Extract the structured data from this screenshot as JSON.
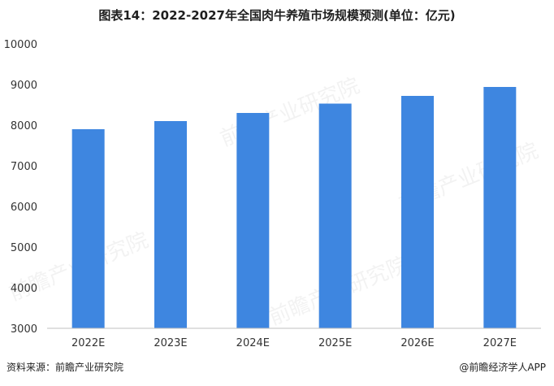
{
  "title": "图表14：2022-2027年全国肉牛养殖市场规模预测(单位：亿元)",
  "footer": {
    "source": "资料来源：前瞻产业研究院",
    "brand": "@前瞻经济学人APP"
  },
  "watermark_text": "前瞻产业研究院",
  "colors": {
    "bar": "#3e86e0",
    "axis": "#bfbfbf",
    "text": "#333333"
  },
  "chart_data": {
    "type": "bar",
    "categories": [
      "2022E",
      "2023E",
      "2024E",
      "2025E",
      "2026E",
      "2027E"
    ],
    "values": [
      7900,
      8100,
      8300,
      8530,
      8720,
      8940
    ],
    "ylim": [
      3000,
      10000
    ],
    "yticks": [
      3000,
      4000,
      5000,
      6000,
      7000,
      8000,
      9000,
      10000
    ],
    "grid": false
  }
}
